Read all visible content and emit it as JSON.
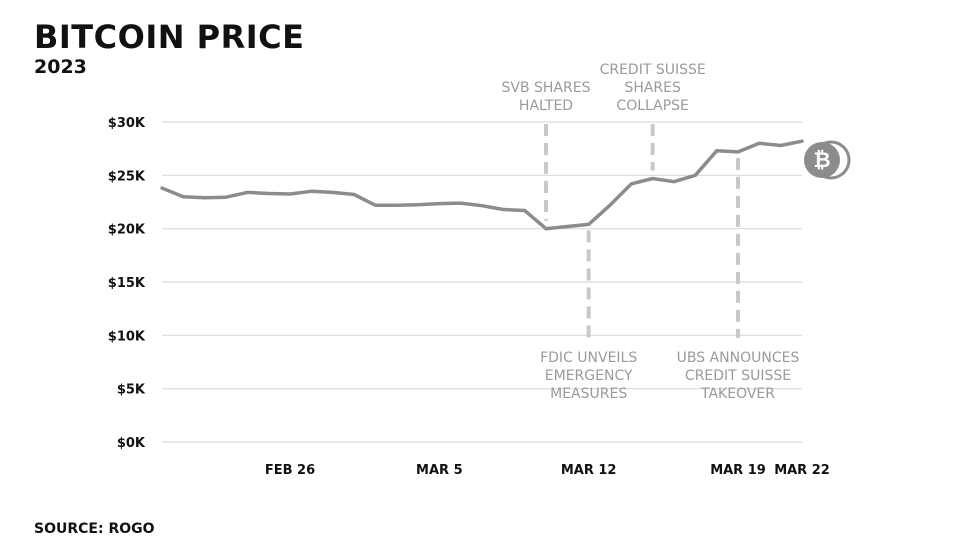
{
  "header": {
    "title": "BITCOIN PRICE",
    "subtitle": "2023"
  },
  "footer": {
    "source": "SOURCE: ROGO"
  },
  "colors": {
    "line": "#8c8c8c",
    "grid": "#d9d9d9",
    "annotation": "#c8c8c8",
    "annotation_text": "#9a9a9a",
    "coin": "#8c8c8c"
  },
  "icons": {
    "end_marker": "bitcoin-icon"
  },
  "chart_data": {
    "type": "line",
    "title": "BITCOIN PRICE",
    "subtitle": "2023",
    "xlabel": "",
    "ylabel": "",
    "grid": true,
    "ylim": [
      0,
      30000
    ],
    "xlim": [
      "2023-02-20",
      "2023-03-22"
    ],
    "yticks": [
      {
        "value": 0,
        "label": "$0K"
      },
      {
        "value": 5000,
        "label": "$5K"
      },
      {
        "value": 10000,
        "label": "$10K"
      },
      {
        "value": 15000,
        "label": "$15K"
      },
      {
        "value": 20000,
        "label": "$20K"
      },
      {
        "value": 25000,
        "label": "$25K"
      },
      {
        "value": 30000,
        "label": "$30K"
      }
    ],
    "xticks": [
      {
        "date": "2023-02-26",
        "label": "FEB 26"
      },
      {
        "date": "2023-03-05",
        "label": "MAR 5"
      },
      {
        "date": "2023-03-12",
        "label": "MAR 12"
      },
      {
        "date": "2023-03-19",
        "label": "MAR 19"
      },
      {
        "date": "2023-03-22",
        "label": "MAR 22"
      }
    ],
    "series": [
      {
        "values": [
          [
            "2023-02-20",
            23800
          ],
          [
            "2023-02-21",
            23000
          ],
          [
            "2023-02-22",
            22900
          ],
          [
            "2023-02-23",
            22950
          ],
          [
            "2023-02-24",
            23400
          ],
          [
            "2023-02-25",
            23300
          ],
          [
            "2023-02-26",
            23250
          ],
          [
            "2023-02-27",
            23500
          ],
          [
            "2023-02-28",
            23400
          ],
          [
            "2023-03-01",
            23200
          ],
          [
            "2023-03-02",
            22200
          ],
          [
            "2023-03-03",
            22200
          ],
          [
            "2023-03-04",
            22250
          ],
          [
            "2023-03-05",
            22350
          ],
          [
            "2023-03-06",
            22400
          ],
          [
            "2023-03-07",
            22150
          ],
          [
            "2023-03-08",
            21800
          ],
          [
            "2023-03-09",
            21700
          ],
          [
            "2023-03-10",
            20000
          ],
          [
            "2023-03-11",
            20200
          ],
          [
            "2023-03-12",
            20400
          ],
          [
            "2023-03-13",
            22200
          ],
          [
            "2023-03-14",
            24200
          ],
          [
            "2023-03-15",
            24700
          ],
          [
            "2023-03-16",
            24400
          ],
          [
            "2023-03-17",
            25000
          ],
          [
            "2023-03-18",
            27300
          ],
          [
            "2023-03-19",
            27200
          ],
          [
            "2023-03-20",
            28000
          ],
          [
            "2023-03-21",
            27800
          ],
          [
            "2023-03-22",
            28200
          ]
        ]
      }
    ],
    "annotations": [
      {
        "date": "2023-03-10",
        "position": "top",
        "lines": [
          "SVB SHARES",
          "HALTED"
        ]
      },
      {
        "date": "2023-03-15",
        "position": "top",
        "lines": [
          "CREDIT SUISSE",
          "SHARES",
          "COLLAPSE"
        ]
      },
      {
        "date": "2023-03-12",
        "position": "bottom",
        "lines": [
          "FDIC UNVEILS",
          "EMERGENCY",
          "MEASURES"
        ]
      },
      {
        "date": "2023-03-19",
        "position": "bottom",
        "lines": [
          "UBS ANNOUNCES",
          "CREDIT SUISSE",
          "TAKEOVER"
        ]
      }
    ]
  }
}
